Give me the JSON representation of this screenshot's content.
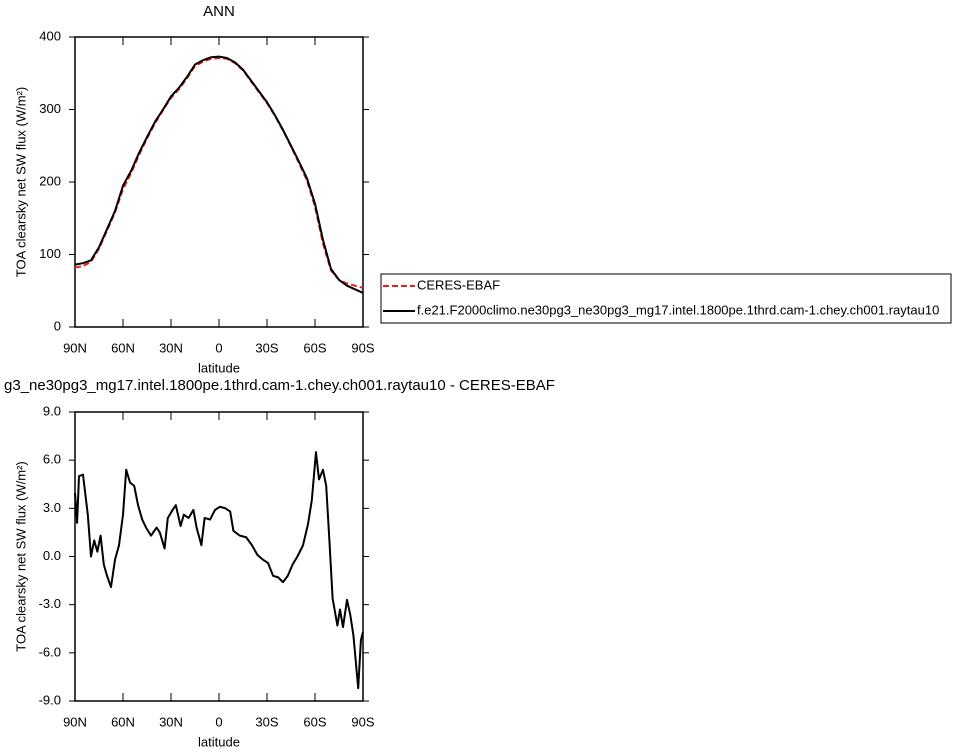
{
  "chart_data": [
    {
      "type": "line",
      "title": "ANN",
      "xlabel": "latitude",
      "ylabel": "TOA clearsky net SW flux (W/m²)",
      "x": [
        90,
        85,
        80,
        75,
        70,
        65,
        60,
        55,
        50,
        45,
        40,
        35,
        30,
        25,
        20,
        15,
        10,
        5,
        0,
        -5,
        -10,
        -15,
        -20,
        -25,
        -30,
        -35,
        -40,
        -45,
        -50,
        -55,
        -60,
        -65,
        -70,
        -75,
        -80,
        -85,
        -90
      ],
      "series": [
        {
          "name": "CERES-EBAF",
          "color": "#e8201c",
          "dash": true,
          "values": [
            82,
            84,
            90,
            108,
            133,
            158,
            190,
            212,
            237,
            260,
            281,
            299,
            316,
            328,
            343,
            360,
            366,
            370,
            371,
            370,
            364,
            354,
            339,
            324,
            309,
            291,
            271,
            249,
            226,
            202,
            166,
            115,
            78,
            65,
            60,
            57,
            54
          ]
        },
        {
          "name": "f.e21.F2000climo.ne30pg3_ne30pg3_mg17.intel.1800pe.1thrd.cam-1.chey.ch001.raytau10",
          "color": "#000000",
          "dash": false,
          "values": [
            86,
            88,
            92,
            110,
            135,
            160,
            195,
            215,
            240,
            262,
            283,
            300,
            318,
            330,
            345,
            362,
            368,
            372,
            373,
            371,
            365,
            355,
            340,
            325,
            310,
            292,
            272,
            250,
            228,
            205,
            170,
            120,
            80,
            65,
            57,
            52,
            47
          ]
        }
      ],
      "xlim": [
        90,
        -90
      ],
      "xticks": [
        {
          "value": 90,
          "label": "90N"
        },
        {
          "value": 60,
          "label": "60N"
        },
        {
          "value": 30,
          "label": "30N"
        },
        0,
        {
          "value": -30,
          "label": "30S"
        },
        {
          "value": -60,
          "label": "60S"
        },
        {
          "value": -90,
          "label": "90S"
        }
      ],
      "ylim": [
        0,
        400
      ],
      "yticks": [
        0,
        100,
        200,
        300,
        400
      ],
      "legend": "right"
    },
    {
      "type": "line",
      "title": "g3_ne30pg3_mg17.intel.1800pe.1thrd.cam-1.chey.ch001.raytau10 - CERES-EBAF",
      "xlabel": "latitude",
      "ylabel": "TOA clearsky net SW flux (W/m²)",
      "x": [
        90,
        88.7,
        87.5,
        85,
        82,
        80,
        78,
        76,
        74,
        72,
        70,
        67.5,
        65,
        62.5,
        60,
        58,
        55.6,
        53,
        50.6,
        48,
        45.6,
        42.5,
        39,
        37,
        34,
        32,
        29,
        27,
        24,
        22,
        19,
        16,
        14,
        11,
        9,
        5.6,
        2.5,
        -0.6,
        -4,
        -7,
        -9,
        -13,
        -17,
        -20.6,
        -24,
        -27.5,
        -30.6,
        -33.8,
        -37,
        -40,
        -43,
        -46,
        -49,
        -52.5,
        -55.6,
        -58,
        -60.6,
        -62.5,
        -65,
        -67,
        -69,
        -71,
        -74,
        -75.6,
        -77.5,
        -80,
        -82,
        -84,
        -87,
        -88.7,
        -90
      ],
      "series": [
        {
          "name": null,
          "color": "#000000",
          "dash": false,
          "values": [
            3.95,
            2.1,
            5.0,
            5.1,
            2.6,
            0.0,
            1.0,
            0.3,
            1.3,
            -0.5,
            -1.2,
            -1.9,
            -0.2,
            0.7,
            2.6,
            5.4,
            4.6,
            4.4,
            3.2,
            2.3,
            1.8,
            1.3,
            1.8,
            1.5,
            0.5,
            2.4,
            2.9,
            3.2,
            1.9,
            2.6,
            2.4,
            2.9,
            1.8,
            0.7,
            2.4,
            2.3,
            2.9,
            3.1,
            3.0,
            2.8,
            1.6,
            1.3,
            1.2,
            0.7,
            0.1,
            -0.2,
            -0.4,
            -1.2,
            -1.3,
            -1.6,
            -1.2,
            -0.5,
            0.0,
            0.7,
            2.0,
            3.5,
            6.5,
            4.8,
            5.4,
            4.4,
            1.0,
            -2.6,
            -4.3,
            -3.3,
            -4.4,
            -2.7,
            -3.6,
            -4.9,
            -8.2,
            -5.2,
            -4.7
          ]
        }
      ],
      "xlim": [
        90,
        -90
      ],
      "xticks": [
        {
          "value": 90,
          "label": "90N"
        },
        {
          "value": 60,
          "label": "60N"
        },
        {
          "value": 30,
          "label": "30N"
        },
        0,
        {
          "value": -30,
          "label": "30S"
        },
        {
          "value": -60,
          "label": "60S"
        },
        {
          "value": -90,
          "label": "90S"
        }
      ],
      "ylim": [
        -9,
        9
      ],
      "yticks": [
        {
          "value": -9,
          "label": "-9.0"
        },
        {
          "value": -6,
          "label": "-6.0"
        },
        {
          "value": -3,
          "label": "-3.0"
        },
        {
          "value": 0,
          "label": "0.0"
        },
        {
          "value": 3,
          "label": "3.0"
        },
        {
          "value": 6,
          "label": "6.0"
        },
        {
          "value": 9,
          "label": "9.0"
        }
      ]
    }
  ]
}
